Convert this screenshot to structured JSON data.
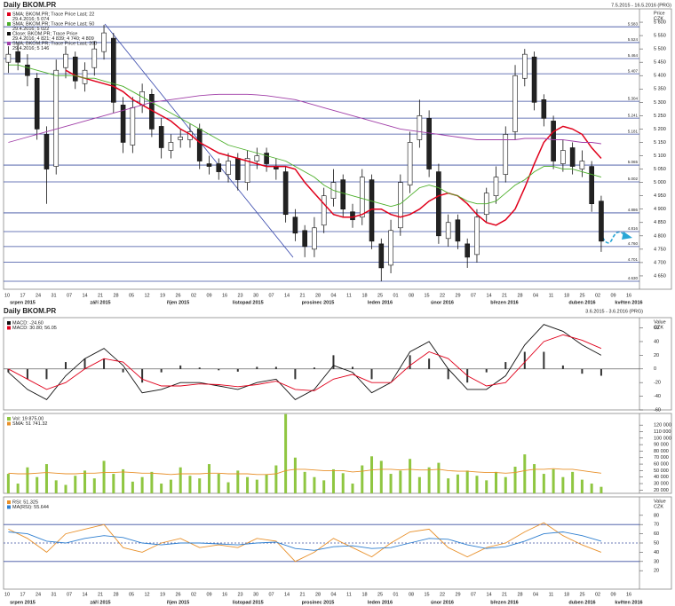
{
  "chart_data": [
    {
      "type": "candlestick",
      "title": "Daily BKOM.PR",
      "subtitle": "7.5.2015 - 16.5.2016 (PRG)",
      "y_label": "Price",
      "y_unit": "CZK",
      "xlim": [
        -0.5,
        66
      ],
      "ylim": [
        4600,
        5650
      ],
      "yticks": [
        {
          "value": 4650,
          "label": "4 650"
        },
        {
          "value": 4700,
          "label": "4 700"
        },
        {
          "value": 4750,
          "label": "4 750"
        },
        {
          "value": 4800,
          "label": "4 800"
        },
        {
          "value": 4850,
          "label": "4 850"
        },
        {
          "value": 4900,
          "label": "4 900"
        },
        {
          "value": 4950,
          "label": "4 950"
        },
        {
          "value": 5000,
          "label": "5 000"
        },
        {
          "value": 5050,
          "label": "5 050"
        },
        {
          "value": 5100,
          "label": "5 100"
        },
        {
          "value": 5150,
          "label": "5 150"
        },
        {
          "value": 5200,
          "label": "5 200"
        },
        {
          "value": 5250,
          "label": "5 250"
        },
        {
          "value": 5300,
          "label": "5 300"
        },
        {
          "value": 5350,
          "label": "5 350"
        },
        {
          "value": 5400,
          "label": "5 400"
        },
        {
          "value": 5450,
          "label": "5 450"
        },
        {
          "value": 5500,
          "label": "5 500"
        },
        {
          "value": 5550,
          "label": "5 550"
        },
        {
          "value": 5600,
          "label": "5 600"
        }
      ],
      "levels": [
        {
          "value": 5583,
          "label": "5.583"
        },
        {
          "value": 5524,
          "label": "5.524"
        },
        {
          "value": 5464,
          "label": "5.464"
        },
        {
          "value": 5407,
          "label": "5.407"
        },
        {
          "value": 5304,
          "label": "5.304"
        },
        {
          "value": 5241,
          "label": "5.241"
        },
        {
          "value": 5181,
          "label": "5.181"
        },
        {
          "value": 5065,
          "label": "5.065"
        },
        {
          "value": 5002,
          "label": "5.002"
        },
        {
          "value": 4886,
          "label": "4.886"
        },
        {
          "value": 4816,
          "label": "4.816"
        },
        {
          "value": 4760,
          "label": "4.760"
        },
        {
          "value": 4701,
          "label": "4.701"
        },
        {
          "value": 4630,
          "label": "4.630"
        }
      ],
      "level_color": "#3b4fa0",
      "x_tick_labels": [
        "10",
        "17",
        "24",
        "31",
        "07",
        "14",
        "21",
        "28",
        "05",
        "12",
        "19",
        "26",
        "02",
        "09",
        "16",
        "23",
        "30",
        "07",
        "14",
        "21",
        "28",
        "04",
        "11",
        "18",
        "25",
        "01",
        "08",
        "15",
        "22",
        "29",
        "07",
        "14",
        "21",
        "28",
        "04",
        "11",
        "18",
        "25",
        "02",
        "09",
        "16"
      ],
      "x_month_labels": [
        "srpen 2015",
        "září 2015",
        "říjen 2015",
        "listopad 2015",
        "prosinec 2015",
        "leden 2016",
        "únor 2016",
        "březen 2016",
        "duben 2016",
        "květen 2016"
      ],
      "open": [
        5450,
        5490,
        5440,
        5390,
        5180,
        5060,
        5430,
        5470,
        5370,
        5430,
        5490,
        5540,
        5290,
        5140,
        5290,
        5330,
        5210,
        5120,
        5160,
        5160,
        5200,
        5070,
        5070,
        5030,
        5090,
        5000,
        5080,
        5110,
        5060,
        5040,
        4870,
        4820,
        4750,
        4840,
        4940,
        5010,
        4890,
        4870,
        5010,
        4770,
        4690,
        4830,
        4990,
        5160,
        5240,
        5040,
        4790,
        4860,
        4770,
        4730,
        4880,
        4950,
        5030,
        5190,
        5390,
        5470,
        5310,
        5230,
        5070,
        5130,
        5050,
        5060,
        4930
      ],
      "high": [
        5510,
        5520,
        5480,
        5410,
        5210,
        5460,
        5510,
        5490,
        5450,
        5530,
        5590,
        5560,
        5320,
        5320,
        5370,
        5350,
        5240,
        5180,
        5200,
        5220,
        5220,
        5100,
        5090,
        5110,
        5110,
        5120,
        5130,
        5130,
        5090,
        5060,
        4900,
        4840,
        4870,
        4980,
        5050,
        5030,
        4920,
        5050,
        5030,
        4790,
        4860,
        5030,
        5190,
        5310,
        5270,
        5070,
        4880,
        4880,
        4790,
        4900,
        4980,
        5060,
        5210,
        5440,
        5500,
        5490,
        5330,
        5250,
        5160,
        5150,
        5120,
        5080,
        4950
      ],
      "low": [
        5410,
        5420,
        5360,
        5160,
        4920,
        5030,
        5390,
        5350,
        5340,
        5400,
        5460,
        5260,
        5110,
        5110,
        5260,
        5170,
        5090,
        5090,
        5130,
        5130,
        5050,
        5030,
        5010,
        5000,
        4970,
        4970,
        5050,
        5040,
        5010,
        4850,
        4780,
        4720,
        4720,
        4810,
        4910,
        4870,
        4830,
        4840,
        4750,
        4630,
        4660,
        4800,
        4960,
        5130,
        5020,
        4770,
        4760,
        4750,
        4680,
        4700,
        4850,
        4920,
        5000,
        5160,
        5360,
        5270,
        5210,
        5050,
        5040,
        5030,
        5020,
        4890,
        4740
      ],
      "close": [
        5480,
        5450,
        5400,
        5200,
        5050,
        5420,
        5480,
        5380,
        5420,
        5500,
        5560,
        5300,
        5150,
        5280,
        5340,
        5200,
        5130,
        5150,
        5170,
        5190,
        5080,
        5060,
        5040,
        5080,
        5010,
        5090,
        5100,
        5070,
        5050,
        4880,
        4810,
        4760,
        4830,
        4950,
        5000,
        4900,
        4860,
        5020,
        4780,
        4680,
        4820,
        5000,
        5150,
        5250,
        5050,
        4800,
        4850,
        4780,
        4720,
        4870,
        4960,
        5020,
        5180,
        5400,
        5480,
        5300,
        5240,
        5080,
        5120,
        5060,
        5080,
        4920,
        4780
      ],
      "ohlc_legend": {
        "name": "Close; BKOM.PR; Trace Price",
        "last": "29.4.2016; 4 821; 4 839; 4 740; 4 809"
      },
      "series": [
        {
          "name": "SMA; BKOM.PR; Trace Price Last; 22",
          "last": "29.4.2016; 5 074",
          "color": "#e0001b",
          "values": [
            null,
            null,
            null,
            null,
            null,
            null,
            5420,
            5400,
            5390,
            5380,
            5370,
            5360,
            5340,
            5310,
            5290,
            5270,
            5250,
            5230,
            5200,
            5180,
            5150,
            5130,
            5110,
            5100,
            5090,
            5080,
            5070,
            5060,
            5060,
            5060,
            5050,
            5000,
            4960,
            4920,
            4880,
            4870,
            4870,
            4880,
            4900,
            4900,
            4880,
            4870,
            4880,
            4900,
            4930,
            4950,
            4960,
            4950,
            4920,
            4880,
            4850,
            4840,
            4860,
            4900,
            4980,
            5070,
            5150,
            5190,
            5210,
            5200,
            5180,
            5130,
            5090
          ]
        },
        {
          "name": "SMA; BKOM.PR; Trace Price Last; 50",
          "last": "29.4.2016; 5 022",
          "color": "#4caf2a",
          "values": [
            5440,
            5440,
            5430,
            5420,
            5410,
            5400,
            5400,
            5400,
            5390,
            5390,
            5380,
            5370,
            5360,
            5340,
            5320,
            5300,
            5280,
            5260,
            5240,
            5220,
            5200,
            5180,
            5160,
            5140,
            5130,
            5120,
            5110,
            5100,
            5090,
            5080,
            5060,
            5040,
            5020,
            4990,
            4970,
            4960,
            4950,
            4940,
            4930,
            4920,
            4910,
            4920,
            4950,
            4980,
            4990,
            4980,
            4960,
            4950,
            4930,
            4920,
            4920,
            4930,
            4960,
            4990,
            5010,
            5040,
            5060,
            5060,
            5050,
            5050,
            5040,
            5030,
            5020
          ]
        },
        {
          "name": "SMA; BKOM.PR; Trace Price Last; 200",
          "last": "29.4.2016; 5 146",
          "color": "#a13fa8",
          "values": [
            5150,
            5160,
            5170,
            5180,
            5190,
            5200,
            5210,
            5220,
            5230,
            5240,
            5250,
            5260,
            5270,
            5280,
            5290,
            5300,
            5305,
            5310,
            5315,
            5320,
            5325,
            5328,
            5330,
            5330,
            5330,
            5330,
            5328,
            5325,
            5320,
            5315,
            5310,
            5300,
            5290,
            5280,
            5270,
            5260,
            5250,
            5240,
            5230,
            5220,
            5210,
            5200,
            5195,
            5190,
            5185,
            5180,
            5175,
            5170,
            5165,
            5160,
            5160,
            5160,
            5160,
            5160,
            5165,
            5165,
            5165,
            5160,
            5160,
            5155,
            5150,
            5150,
            5145
          ]
        }
      ]
    },
    {
      "type": "macd",
      "title": "Daily BKOM.PR",
      "subtitle": "3.6.2015 - 3.6.2016 (PRG)",
      "y_label": "Value",
      "y_unit": "CZK",
      "xlim": [
        -0.25,
        33
      ],
      "ylim": [
        -60,
        75
      ],
      "yticks": [
        60,
        40,
        20,
        0,
        -20,
        -40,
        -60
      ],
      "series": [
        {
          "name": "MACD: -24.60",
          "color": "#111111",
          "values": [
            -5,
            -30,
            -45,
            -10,
            15,
            30,
            5,
            -35,
            -30,
            -20,
            -20,
            -25,
            -30,
            -20,
            -15,
            -45,
            -30,
            5,
            -5,
            -35,
            -20,
            25,
            40,
            0,
            -30,
            -30,
            -10,
            35,
            65,
            55,
            35,
            20
          ]
        },
        {
          "name": "MACD: 30.80; 56.05",
          "color": "#e0001b",
          "values": [
            0,
            -15,
            -30,
            -20,
            0,
            15,
            10,
            -15,
            -25,
            -25,
            -22,
            -23,
            -26,
            -23,
            -18,
            -30,
            -32,
            -15,
            -8,
            -20,
            -20,
            5,
            25,
            15,
            -10,
            -25,
            -20,
            10,
            40,
            50,
            42,
            30
          ]
        }
      ],
      "histogram": {
        "color": "#333333",
        "values": [
          -5,
          -15,
          -15,
          10,
          15,
          15,
          -5,
          -20,
          -5,
          5,
          2,
          -2,
          -4,
          3,
          3,
          -15,
          2,
          20,
          3,
          -15,
          0,
          20,
          15,
          -15,
          -20,
          -5,
          10,
          25,
          25,
          5,
          -7,
          -10
        ]
      }
    },
    {
      "type": "volume",
      "xlim": [
        -0.5,
        66
      ],
      "ylim": [
        15000,
        138000
      ],
      "yticks": [
        {
          "value": 20000,
          "label": "20 000"
        },
        {
          "value": 30000,
          "label": "30 000"
        },
        {
          "value": 40000,
          "label": "40 000"
        },
        {
          "value": 50000,
          "label": "50 000"
        },
        {
          "value": 60000,
          "label": "60 000"
        },
        {
          "value": 70000,
          "label": "70 000"
        },
        {
          "value": 80000,
          "label": "80 000"
        },
        {
          "value": 90000,
          "label": "90 000"
        },
        {
          "value": 100000,
          "label": "100 000"
        },
        {
          "value": 110000,
          "label": "110 000"
        },
        {
          "value": 120000,
          "label": "120 000"
        }
      ],
      "name": "Vol: 19 875.00",
      "color": "#8fc641",
      "values": [
        45000,
        30000,
        55000,
        40000,
        60000,
        35000,
        28000,
        42000,
        50000,
        38000,
        65000,
        45000,
        52000,
        33000,
        40000,
        48000,
        30000,
        36000,
        55000,
        42000,
        38000,
        60000,
        45000,
        32000,
        50000,
        40000,
        36000,
        44000,
        58000,
        137000,
        70000,
        48000,
        40000,
        35000,
        52000,
        46000,
        30000,
        58000,
        72000,
        65000,
        45000,
        50000,
        68000,
        40000,
        55000,
        62000,
        38000,
        44000,
        50000,
        42000,
        35000,
        48000,
        40000,
        56000,
        75000,
        60000,
        45000,
        52000,
        40000,
        48000,
        36000,
        30000,
        25000
      ],
      "series": [
        {
          "name": "SMA: 51 741.32",
          "color": "#e8902a",
          "values": [
            46000,
            45000,
            45000,
            46000,
            47000,
            46000,
            45000,
            45000,
            46000,
            46000,
            47000,
            47000,
            48000,
            47000,
            46000,
            46000,
            45000,
            44000,
            45000,
            45000,
            45000,
            46000,
            46000,
            45000,
            45000,
            45000,
            44000,
            44000,
            45000,
            50000,
            52000,
            52000,
            51000,
            50000,
            50000,
            50000,
            48000,
            49000,
            51000,
            52000,
            52000,
            51000,
            52000,
            51000,
            51000,
            52000,
            50000,
            49000,
            49000,
            48000,
            47000,
            47000,
            46000,
            47000,
            50000,
            52000,
            52000,
            53000,
            52000,
            52000,
            50000,
            48000,
            46000
          ]
        }
      ]
    },
    {
      "type": "rsi",
      "y_label": "Value",
      "y_unit": "CZK",
      "xlim": [
        -0.25,
        33
      ],
      "ylim": [
        0,
        100
      ],
      "yticks": [
        80,
        70,
        60,
        50,
        40,
        30,
        20
      ],
      "hlines": [
        70,
        50,
        30
      ],
      "hline_color": "#3b4fa0",
      "series": [
        {
          "name": "RSI: 51.325",
          "color": "#e8902a",
          "values": [
            65,
            55,
            40,
            60,
            65,
            70,
            45,
            40,
            50,
            55,
            45,
            48,
            45,
            55,
            52,
            30,
            40,
            55,
            45,
            35,
            50,
            62,
            65,
            45,
            35,
            45,
            50,
            62,
            72,
            58,
            48,
            40
          ]
        },
        {
          "name": "MA(RSI): 55.644",
          "color": "#2f7fd0",
          "values": [
            62,
            60,
            52,
            50,
            55,
            58,
            56,
            50,
            48,
            50,
            50,
            49,
            48,
            50,
            51,
            44,
            42,
            46,
            47,
            44,
            45,
            50,
            55,
            54,
            48,
            44,
            46,
            52,
            60,
            62,
            58,
            52
          ]
        }
      ]
    }
  ]
}
